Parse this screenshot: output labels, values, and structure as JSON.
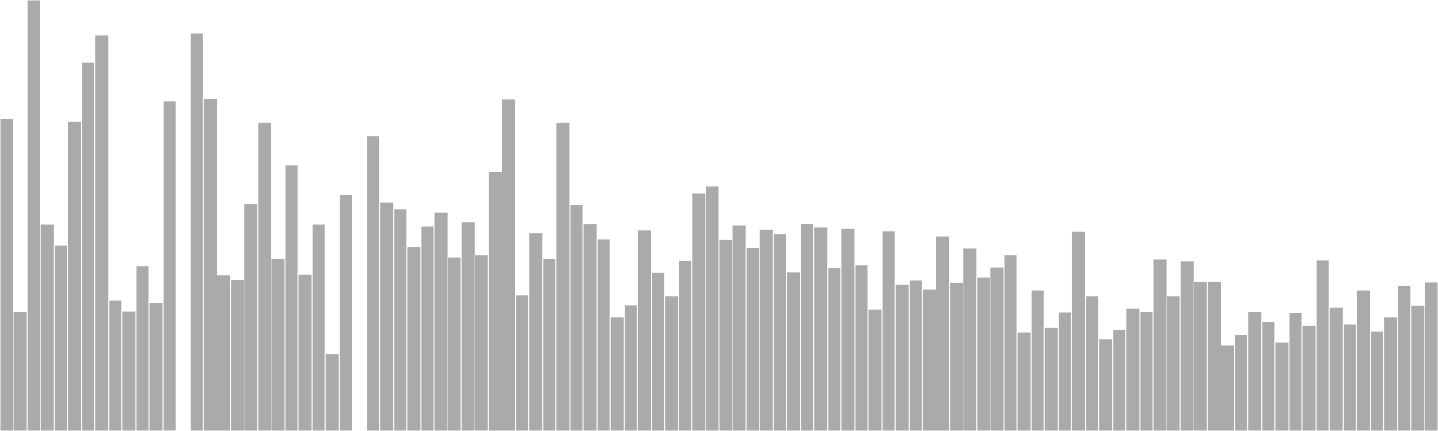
{
  "chart_data": {
    "type": "bar",
    "title": "",
    "xlabel": "",
    "ylabel": "",
    "ylim": [
      0,
      100
    ],
    "bar_color": "#aaaaaa",
    "background": "#ffffff",
    "grid": false,
    "legend": "none",
    "values": [
      72.6,
      27.7,
      100,
      47.9,
      43.1,
      71.8,
      85.6,
      91.9,
      30.4,
      27.9,
      38.4,
      29.9,
      76.5,
      null,
      92.3,
      77.2,
      36.3,
      35.1,
      52.8,
      71.6,
      40.1,
      61.7,
      36.4,
      47.9,
      18.0,
      54.9,
      null,
      68.4,
      53.1,
      51.5,
      42.8,
      47.5,
      50.8,
      40.4,
      48.6,
      40.9,
      60.3,
      77.1,
      31.5,
      45.9,
      39.9,
      71.6,
      52.6,
      48.0,
      44.6,
      26.5,
      29.2,
      46.7,
      36.8,
      31.3,
      39.5,
      55.2,
      56.9,
      44.5,
      47.7,
      42.6,
      46.8,
      45.7,
      36.9,
      48.1,
      47.3,
      37.8,
      47.0,
      38.6,
      28.3,
      46.5,
      34.1,
      35.0,
      32.9,
      45.2,
      34.5,
      42.5,
      35.6,
      38.1,
      40.9,
      22.9,
      32.7,
      24.1,
      27.5,
      46.4,
      31.3,
      21.3,
      23.5,
      28.5,
      27.6,
      39.8,
      31.3,
      39.4,
      34.7,
      34.7,
      20.0,
      22.4,
      27.6,
      25.3,
      20.6,
      27.4,
      24.5,
      39.6,
      28.7,
      24.8,
      32.7,
      23.1,
      26.5,
      33.8,
      29.1,
      34.6
    ]
  }
}
